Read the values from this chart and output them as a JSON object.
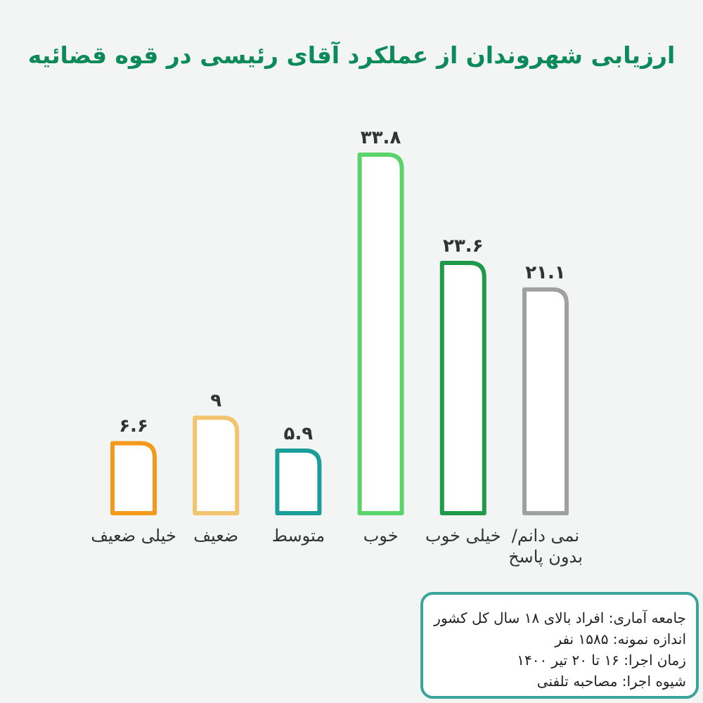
{
  "chart_data": {
    "type": "bar",
    "title": "ارزیابی شهروندان از عملکرد آقای رئیسی در قوه قضائیه",
    "categories": [
      "خیلی ضعیف",
      "ضعیف",
      "متوسط",
      "خوب",
      "خیلی خوب",
      "نمی دانم/ بدون پاسخ"
    ],
    "values": [
      6.6,
      9,
      5.9,
      33.8,
      23.6,
      21.1
    ],
    "value_labels": [
      "۶.۶",
      "۹",
      "۵.۹",
      "۳۳.۸",
      "۲۳.۶",
      "۲۱.۱"
    ],
    "colors": [
      "#f39a1c",
      "#f3c46e",
      "#1b9e9a",
      "#5ad46a",
      "#1f9a48",
      "#a0a0a0"
    ],
    "annotations": [
      "جامعه آماری: افراد بالای ۱۸ سال کل کشور",
      "اندازه نمونه: ۱۵۸۵ نفر",
      "زمان اجرا: ۱۶ تا ۲۰ تیر ۱۴۰۰",
      "شیوه اجرا: مصاحبه تلفنی"
    ]
  }
}
